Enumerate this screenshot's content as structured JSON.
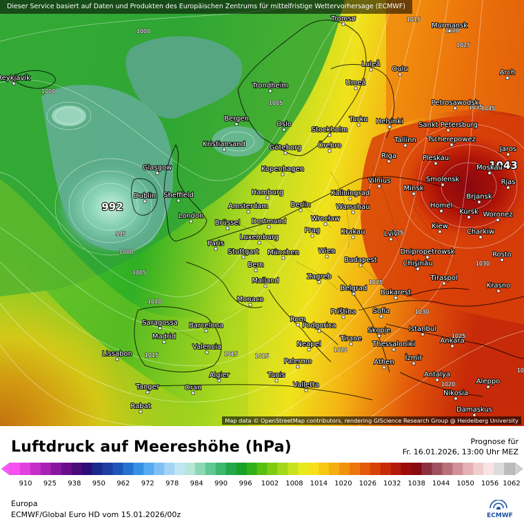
{
  "banner": "Dieser Service basiert auf Daten und Produkten des Europäischen Zentrums für mittelfristige Wettervorhersage (ECMWF)",
  "credits": "Map data © OpenStreetMap contributors, rendering GIScience Research Group @ Heidelberg University",
  "title": "Luftdruck auf Meereshöhe (hPa)",
  "forecast_label": "Prognose für",
  "forecast_date": "Fr. 16.01.2026, 13:00 Uhr MEZ",
  "region": "Europa",
  "model_run": "ECMWF/Global Euro HD vom  15.01.2026/00z",
  "logo_text": "ECMWF",
  "legend": {
    "ticks": [
      "910",
      "925",
      "938",
      "950",
      "962",
      "972",
      "978",
      "984",
      "990",
      "996",
      "1002",
      "1008",
      "1014",
      "1020",
      "1026",
      "1032",
      "1038",
      "1044",
      "1050",
      "1056",
      "1062"
    ],
    "colors": [
      "#f84ff0",
      "#e13fe0",
      "#c52ec8",
      "#a820b4",
      "#8a16a0",
      "#6c0e8c",
      "#4a0a7a",
      "#2e0c78",
      "#1a2a8a",
      "#1c3ea0",
      "#1e55b8",
      "#2672d0",
      "#3690e4",
      "#56aaf0",
      "#7ec0f6",
      "#a2d4f8",
      "#bfe6f0",
      "#b8e6d8",
      "#8cd8b4",
      "#60c890",
      "#3cb86c",
      "#22a848",
      "#18a028",
      "#30b018",
      "#58c010",
      "#7ecc10",
      "#a4d818",
      "#c8e220",
      "#e8ea20",
      "#f6e018",
      "#f8c814",
      "#f6ae10",
      "#f2920e",
      "#ec760c",
      "#e45a0a",
      "#d84008",
      "#c82a08",
      "#b41808",
      "#9c0c08",
      "#880a12",
      "#8c3040",
      "#a05060",
      "#b87078",
      "#d09098",
      "#e4b0b4",
      "#f0ccce",
      "#f8e4e4",
      "#dcdcdc",
      "#bcbcbc"
    ],
    "arrow_left_color": "#ff55ff",
    "arrow_right_color": "#d0d0d0"
  },
  "cities": [
    {
      "name": "Reykjavík"
    },
    {
      "name": "Tromsø"
    },
    {
      "name": "Murmansk"
    },
    {
      "name": "Luleå"
    },
    {
      "name": "Oulu"
    },
    {
      "name": "Arch"
    },
    {
      "name": "Umeå"
    },
    {
      "name": "Trondheim"
    },
    {
      "name": "Petrosawodsk"
    },
    {
      "name": "Bergen"
    },
    {
      "name": "Oslo"
    },
    {
      "name": "Turku"
    },
    {
      "name": "Helsinki"
    },
    {
      "name": "Sankt Petersburg"
    },
    {
      "name": "Stockholm"
    },
    {
      "name": "Kristiansand"
    },
    {
      "name": "Göteborg"
    },
    {
      "name": "Örebro"
    },
    {
      "name": "Tallinn"
    },
    {
      "name": "Tscherepowez"
    },
    {
      "name": "Jaros"
    },
    {
      "name": "Pleskau"
    },
    {
      "name": "Riga"
    },
    {
      "name": "Kopenhagen"
    },
    {
      "name": "Glasgow"
    },
    {
      "name": "Moskau"
    },
    {
      "name": "Vilnius"
    },
    {
      "name": "Smolensk"
    },
    {
      "name": "Rjas"
    },
    {
      "name": "Hamburg"
    },
    {
      "name": "Minsk"
    },
    {
      "name": "Kaliningrad"
    },
    {
      "name": "Dublin"
    },
    {
      "name": "Sheffield"
    },
    {
      "name": "Brjansk"
    },
    {
      "name": "Berlin"
    },
    {
      "name": "Amsterdam"
    },
    {
      "name": "Warschau"
    },
    {
      "name": "Homel"
    },
    {
      "name": "London"
    },
    {
      "name": "Kursk"
    },
    {
      "name": "Dortmund"
    },
    {
      "name": "Woronez"
    },
    {
      "name": "Wrocław"
    },
    {
      "name": "Brüssel"
    },
    {
      "name": "Kiew"
    },
    {
      "name": "Prag"
    },
    {
      "name": "Krakau"
    },
    {
      "name": "Luxemburg"
    },
    {
      "name": "Lviv"
    },
    {
      "name": "Charkiw"
    },
    {
      "name": "Paris"
    },
    {
      "name": "Dnipropetrowsk"
    },
    {
      "name": "Stuttgart"
    },
    {
      "name": "München"
    },
    {
      "name": "Wien"
    },
    {
      "name": "Rosto"
    },
    {
      "name": "Budapest"
    },
    {
      "name": "Chişinău"
    },
    {
      "name": "Bern"
    },
    {
      "name": "Tiraspol"
    },
    {
      "name": "Mailand"
    },
    {
      "name": "Zagreb"
    },
    {
      "name": "Krasno"
    },
    {
      "name": "Belgrad"
    },
    {
      "name": "Bukarest"
    },
    {
      "name": "Monaco"
    },
    {
      "name": "Priština"
    },
    {
      "name": "Sofia"
    },
    {
      "name": "Saragossa"
    },
    {
      "name": "Barcelona"
    },
    {
      "name": "Rom"
    },
    {
      "name": "Podgorica"
    },
    {
      "name": "Istanbul"
    },
    {
      "name": "Madrid"
    },
    {
      "name": "Skopje"
    },
    {
      "name": "Tirane"
    },
    {
      "name": "Ankara"
    },
    {
      "name": "Thessaloniki"
    },
    {
      "name": "Neapel"
    },
    {
      "name": "Valencia"
    },
    {
      "name": "Lissabon"
    },
    {
      "name": "İzmir"
    },
    {
      "name": "Palermo"
    },
    {
      "name": "Athen"
    },
    {
      "name": "Algier"
    },
    {
      "name": "Tunis"
    },
    {
      "name": "Antalya"
    },
    {
      "name": "Tanger"
    },
    {
      "name": "Oran"
    },
    {
      "name": "Valletta"
    },
    {
      "name": "Aleppo"
    },
    {
      "name": "Nikosia"
    },
    {
      "name": "Rabat"
    },
    {
      "name": "Damaskus"
    }
  ],
  "isobar_labels": [
    "1000",
    "1015",
    "1020",
    "1025",
    "1000",
    "1005",
    "1035",
    "1045",
    "995",
    "1000",
    "1005",
    "1010",
    "1020",
    "1025",
    "1030",
    "1025",
    "1015",
    "1015",
    "1015",
    "1020",
    "1025",
    "1030",
    "1015"
  ],
  "extremes": [
    {
      "value": "992"
    },
    {
      "value": "1043"
    }
  ]
}
